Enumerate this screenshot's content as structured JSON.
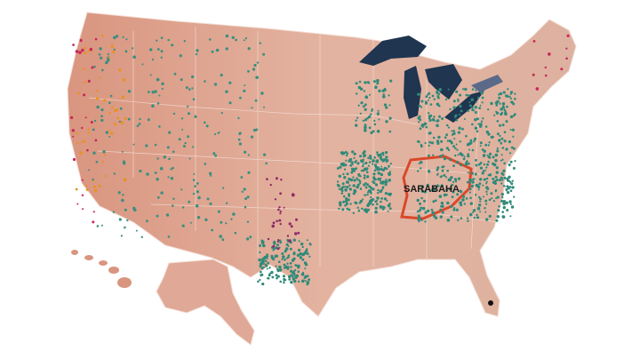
{
  "map": {
    "label": "SARABAHA"
  }
}
